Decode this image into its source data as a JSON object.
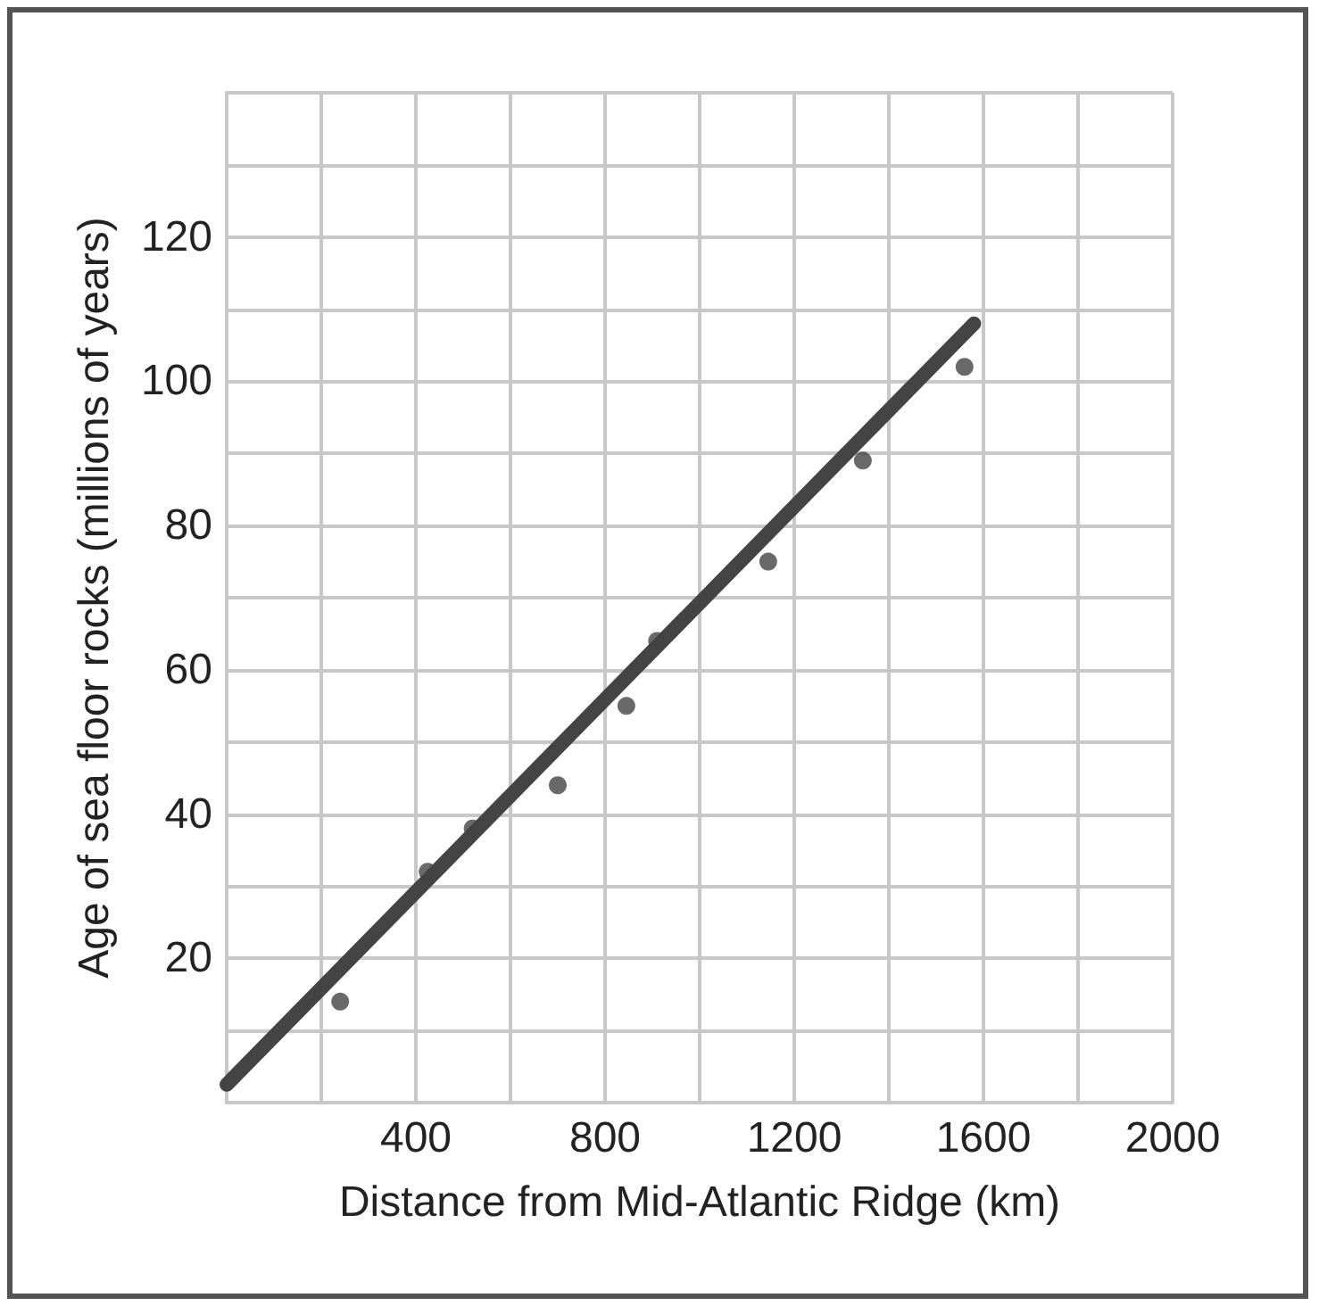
{
  "chart_data": {
    "type": "scatter",
    "xlabel": "Distance from Mid-Atlantic Ridge (km)",
    "ylabel": "Age of sea floor rocks (millions of years)",
    "x": [
      240,
      425,
      520,
      700,
      845,
      910,
      1145,
      1345,
      1560
    ],
    "series": [
      {
        "color": "#444444",
        "marker": "circle",
        "values": [
          14,
          32,
          38,
          44,
          55,
          64,
          75,
          89,
          102
        ]
      },
      {
        "type": "line",
        "color": "#444444",
        "marker": "none",
        "x": [
          0,
          1580
        ],
        "values": [
          2.5,
          108
        ]
      }
    ],
    "xlim": [
      0,
      2000
    ],
    "ylim": [
      0,
      140
    ],
    "xticks": [
      {
        "value": 0,
        "label": null
      },
      {
        "value": 200,
        "label": null
      },
      400,
      {
        "value": 600,
        "label": null
      },
      800,
      {
        "value": 1000,
        "label": null
      },
      1200,
      {
        "value": 1400,
        "label": null
      },
      1600,
      {
        "value": 1800,
        "label": null
      },
      2000
    ],
    "yticks": [
      {
        "value": 0,
        "label": null
      },
      {
        "value": 10,
        "label": null
      },
      20,
      {
        "value": 30,
        "label": null
      },
      40,
      {
        "value": 50,
        "label": null
      },
      60,
      {
        "value": 70,
        "label": null
      },
      80,
      {
        "value": 90,
        "label": null
      },
      100,
      {
        "value": 110,
        "label": null
      },
      120,
      {
        "value": 130,
        "label": null
      },
      {
        "value": 140,
        "label": null
      }
    ],
    "grid": true
  }
}
